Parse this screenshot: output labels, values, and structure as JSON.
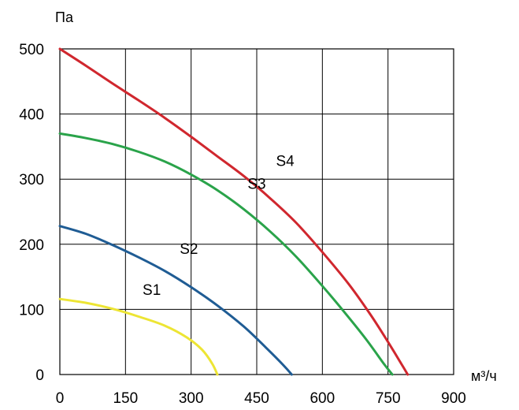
{
  "chart_data": {
    "type": "line",
    "title": "",
    "xlabel": "м³/ч",
    "ylabel": "Па",
    "xlim": [
      0,
      900
    ],
    "ylim": [
      0,
      500
    ],
    "x_ticks": [
      0,
      150,
      300,
      450,
      600,
      750,
      900
    ],
    "y_ticks": [
      0,
      100,
      200,
      300,
      400,
      500
    ],
    "grid": true,
    "series": [
      {
        "name": "S1",
        "color": "#ede534",
        "points": [
          [
            0,
            116
          ],
          [
            60,
            110
          ],
          [
            120,
            101
          ],
          [
            180,
            89
          ],
          [
            240,
            75
          ],
          [
            290,
            57
          ],
          [
            325,
            38
          ],
          [
            348,
            17
          ],
          [
            360,
            0
          ]
        ]
      },
      {
        "name": "S2",
        "color": "#1f5c94",
        "points": [
          [
            0,
            228
          ],
          [
            60,
            216
          ],
          [
            120,
            199
          ],
          [
            180,
            180
          ],
          [
            240,
            159
          ],
          [
            300,
            134
          ],
          [
            360,
            106
          ],
          [
            420,
            74
          ],
          [
            470,
            42
          ],
          [
            510,
            15
          ],
          [
            530,
            0
          ]
        ]
      },
      {
        "name": "S3",
        "color": "#2aa34a",
        "points": [
          [
            0,
            370
          ],
          [
            60,
            363
          ],
          [
            120,
            354
          ],
          [
            180,
            342
          ],
          [
            240,
            327
          ],
          [
            300,
            307
          ],
          [
            360,
            283
          ],
          [
            420,
            254
          ],
          [
            480,
            220
          ],
          [
            540,
            181
          ],
          [
            600,
            136
          ],
          [
            650,
            96
          ],
          [
            700,
            54
          ],
          [
            740,
            17
          ],
          [
            760,
            0
          ]
        ]
      },
      {
        "name": "S4",
        "color": "#d0272e",
        "points": [
          [
            0,
            500
          ],
          [
            60,
            474
          ],
          [
            120,
            447
          ],
          [
            180,
            421
          ],
          [
            240,
            394
          ],
          [
            300,
            365
          ],
          [
            360,
            335
          ],
          [
            420,
            305
          ],
          [
            480,
            271
          ],
          [
            540,
            233
          ],
          [
            600,
            188
          ],
          [
            660,
            139
          ],
          [
            710,
            92
          ],
          [
            750,
            50
          ],
          [
            780,
            17
          ],
          [
            795,
            0
          ]
        ]
      }
    ],
    "annotations": [
      {
        "text": "S1",
        "x": 210,
        "y": 122
      },
      {
        "text": "S2",
        "x": 295,
        "y": 185
      },
      {
        "text": "S3",
        "x": 450,
        "y": 285
      },
      {
        "text": "S4",
        "x": 515,
        "y": 320
      }
    ]
  }
}
